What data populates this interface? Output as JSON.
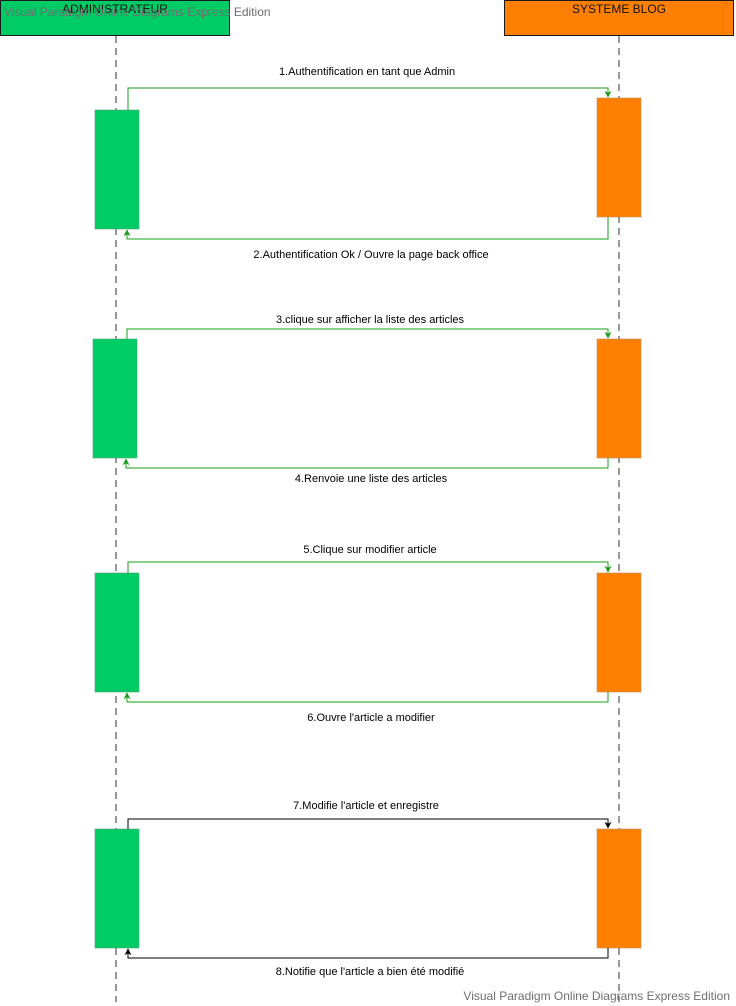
{
  "colors": {
    "admin": "#00cc66",
    "system": "#ff8000",
    "arrow_green": "#1a9c1a",
    "arrow_black": "#000000",
    "lifeline": "#777777"
  },
  "actors": {
    "admin": {
      "name": "ADMINISTRATEUR"
    },
    "system": {
      "name": "SYSTEME BLOG"
    }
  },
  "messages": [
    {
      "label": "1.Authentification en tant que Admin",
      "direction": "to-system",
      "color": "green"
    },
    {
      "label": "2.Authentification Ok / Ouvre la page back office",
      "direction": "to-admin",
      "color": "green"
    },
    {
      "label": "3.clique sur afficher la liste des articles",
      "direction": "to-system",
      "color": "green"
    },
    {
      "label": "4.Renvoie une liste des articles",
      "direction": "to-admin",
      "color": "green"
    },
    {
      "label": "5.Clique sur modifier article",
      "direction": "to-system",
      "color": "green"
    },
    {
      "label": "6.Ouvre l'article a modifier",
      "direction": "to-admin",
      "color": "green"
    },
    {
      "label": "7.Modifie l'article et enregistre",
      "direction": "to-system",
      "color": "black"
    },
    {
      "label": "8.Notifie que l'article a bien été modifié",
      "direction": "to-admin",
      "color": "black"
    }
  ],
  "watermark": {
    "top": "Visual Paradigm Online Diagrams Express Edition",
    "bottom": "Visual Paradigm Online Diagrams Express Edition"
  }
}
